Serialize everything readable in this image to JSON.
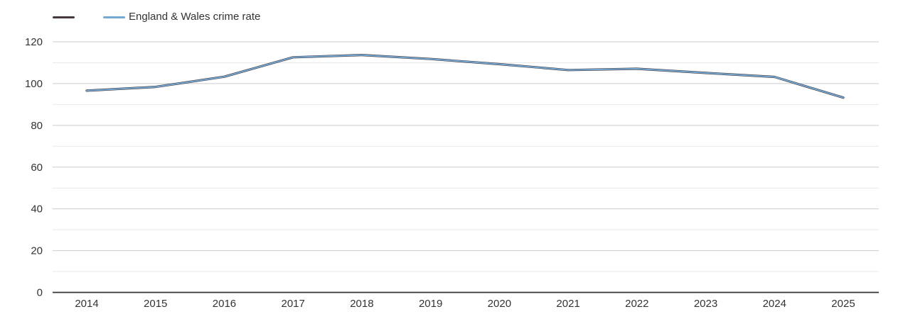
{
  "chart_data": {
    "type": "line",
    "title": "",
    "xlabel": "",
    "ylabel": "",
    "categories": [
      "2014",
      "2015",
      "2016",
      "2017",
      "2018",
      "2019",
      "2020",
      "2021",
      "2022",
      "2023",
      "2024",
      "2025"
    ],
    "series": [
      {
        "name": "",
        "color": "#44383b",
        "values": [
          96.6,
          98.4,
          103.3,
          112.6,
          113.7,
          111.8,
          109.3,
          106.5,
          107.1,
          105.1,
          103.2,
          93.3
        ]
      },
      {
        "name": "England & Wales crime rate",
        "color": "#73a9d4",
        "values": [
          96.6,
          98.4,
          103.3,
          112.6,
          113.7,
          111.8,
          109.3,
          106.5,
          107.1,
          105.1,
          103.2,
          93.3
        ]
      }
    ],
    "ylim": [
      0,
      120
    ],
    "y_major_ticks": [
      0,
      20,
      40,
      60,
      80,
      100,
      120
    ],
    "y_minor_ticks": [
      10,
      30,
      50,
      70,
      90,
      110
    ],
    "grid": "horizontal only, major + faint minor",
    "legend_position": "top-left"
  },
  "legend": {
    "items": [
      {
        "label": ""
      },
      {
        "label": "England & Wales crime rate"
      }
    ]
  },
  "colors": {
    "background": "#ffffff",
    "axis_line": "#333333",
    "major_grid": "#cccccc",
    "minor_grid": "#e9e9e9",
    "label_text": "#333333",
    "series_region": "#44383b",
    "series_england_wales": "#73a9d4"
  }
}
